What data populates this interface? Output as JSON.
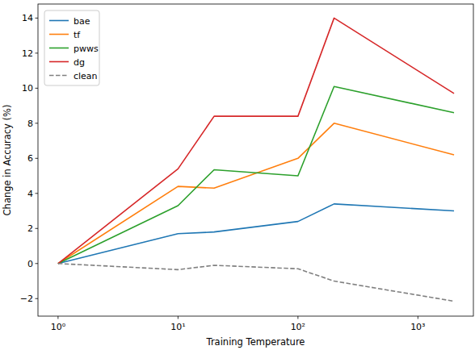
{
  "chart_data": {
    "type": "line",
    "x_label": "Training Temperature",
    "y_label": "Change in Accuracy (%)",
    "x": [
      1,
      10,
      20,
      100,
      200,
      2000
    ],
    "series": [
      {
        "name": "bae",
        "color": "#1f77b4",
        "line_style": "solid",
        "values": [
          0,
          1.7,
          1.8,
          2.4,
          3.4,
          3.0
        ]
      },
      {
        "name": "tf",
        "color": "#ff7f0e",
        "line_style": "solid",
        "values": [
          0,
          4.4,
          4.3,
          6.0,
          8.0,
          6.2
        ]
      },
      {
        "name": "pwws",
        "color": "#2ca02c",
        "line_style": "solid",
        "values": [
          0,
          3.3,
          5.35,
          5.0,
          10.1,
          8.6
        ]
      },
      {
        "name": "dg",
        "color": "#d62728",
        "line_style": "solid",
        "values": [
          0,
          5.4,
          8.4,
          8.4,
          14.0,
          9.7
        ]
      },
      {
        "name": "clean",
        "color": "#808080",
        "line_style": "dashed",
        "values": [
          0,
          -0.35,
          -0.1,
          -0.3,
          -1.0,
          -2.15
        ]
      }
    ],
    "xlim": [
      0.68,
      2900
    ],
    "ylim": [
      -3.0,
      14.8
    ],
    "xticks": [
      {
        "value": 1,
        "label": "10⁰"
      },
      {
        "value": 10,
        "label": "10¹"
      },
      {
        "value": 100,
        "label": "10²"
      },
      {
        "value": 1000,
        "label": "10³"
      }
    ],
    "yticks": [
      -2,
      0,
      2,
      4,
      6,
      8,
      10,
      12,
      14
    ],
    "log": "x",
    "grid": false,
    "legend": "upper left"
  }
}
